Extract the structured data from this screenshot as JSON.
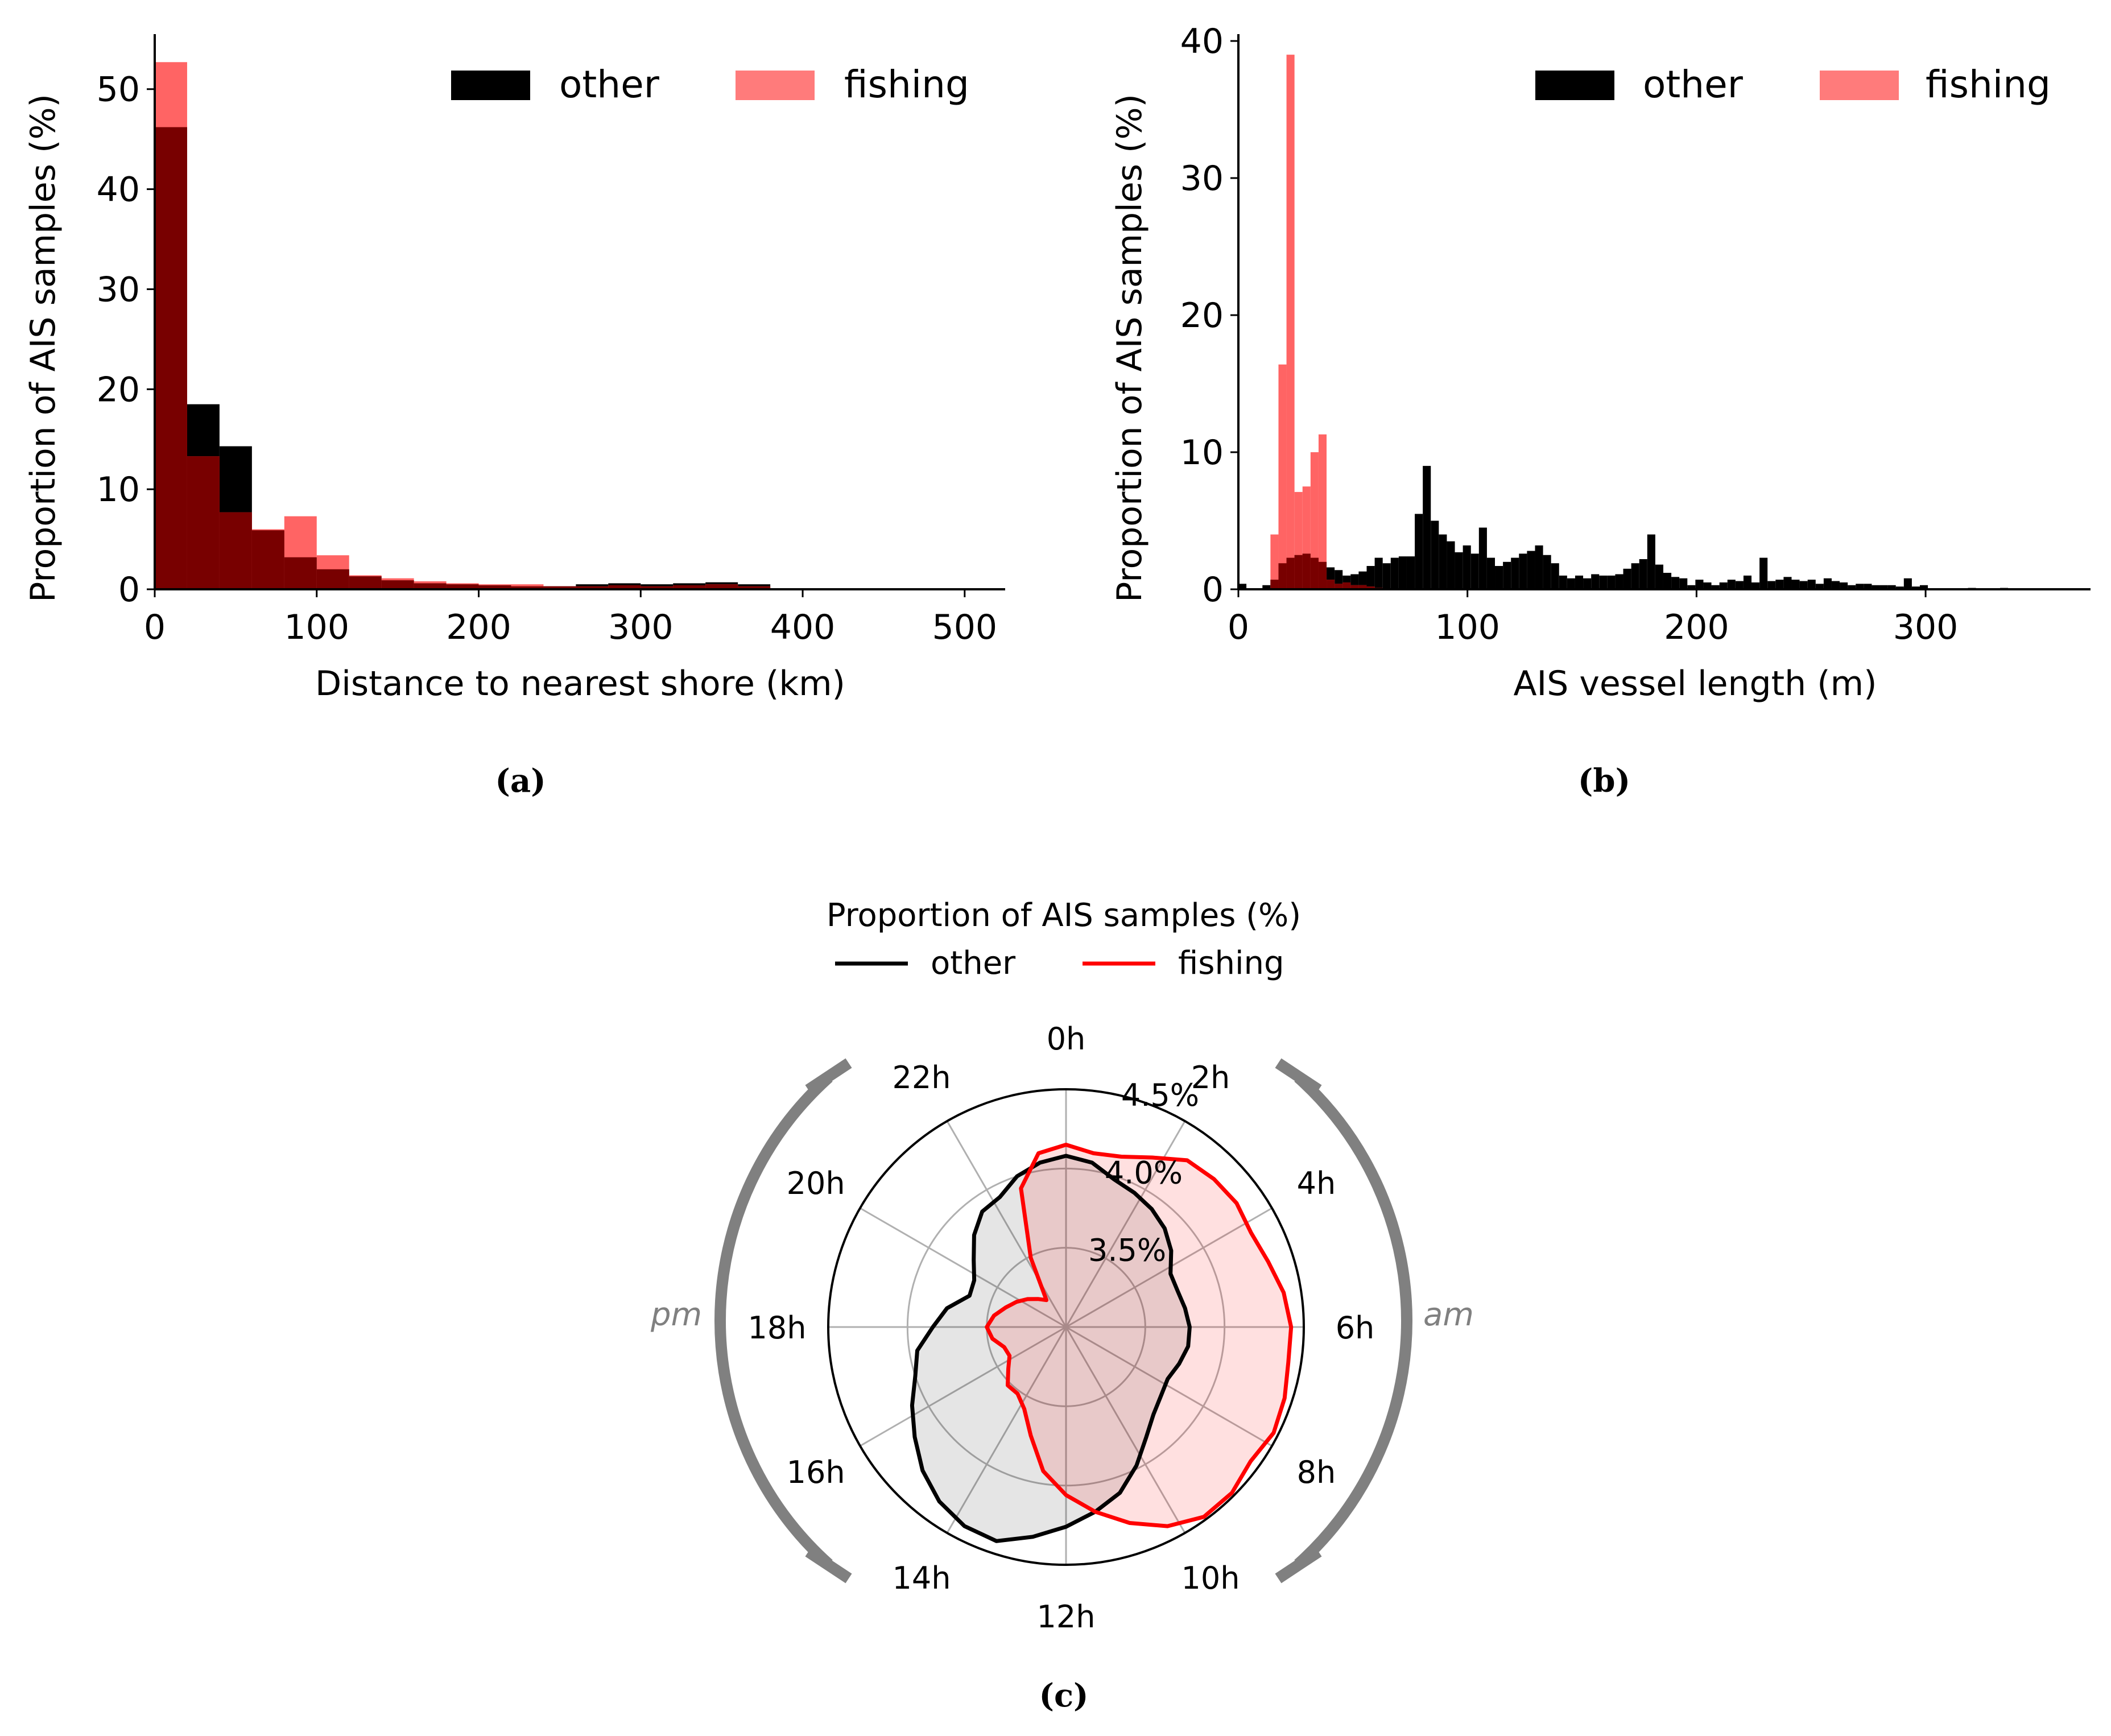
{
  "colors": {
    "other": "#000000",
    "fishing": "#ff0000",
    "fishing_bar": "#ff6464",
    "overlap": "#780000",
    "grid": "#b0b0b0",
    "bracket": "#808080",
    "other_fill": "#e5e5e5",
    "fishing_fill": "#ffdede"
  },
  "chart_data": [
    {
      "type": "bar",
      "panel_label": "(a)",
      "xlabel": "Distance to nearest shore (km)",
      "ylabel": "Proportion of AIS samples (%)",
      "xlim": [
        0,
        525
      ],
      "ylim": [
        0,
        55.5
      ],
      "xticks": [
        "0",
        "100",
        "200",
        "300",
        "400",
        "500"
      ],
      "xtick_values": [
        0,
        100,
        200,
        300,
        400,
        500
      ],
      "yticks": [
        "0",
        "10",
        "20",
        "30",
        "40",
        "50"
      ],
      "ytick_values": [
        0,
        10,
        20,
        30,
        40,
        50
      ],
      "legend": [
        "other",
        "fishing"
      ],
      "legend_position": "top-right",
      "bin_edges": [
        0,
        20,
        40,
        60,
        80,
        100,
        120,
        140,
        160,
        180,
        200,
        220,
        240,
        260,
        280,
        300,
        320,
        340,
        360,
        380
      ],
      "series": [
        {
          "name": "other",
          "values": [
            46.2,
            18.5,
            14.3,
            5.9,
            3.2,
            2.0,
            1.3,
            0.9,
            0.6,
            0.5,
            0.4,
            0.3,
            0.3,
            0.5,
            0.6,
            0.5,
            0.6,
            0.7,
            0.5
          ]
        },
        {
          "name": "fishing",
          "values": [
            52.7,
            13.3,
            7.7,
            6.0,
            7.3,
            3.4,
            1.4,
            1.1,
            0.8,
            0.6,
            0.5,
            0.5,
            0.3,
            0.3,
            0.4,
            0.3,
            0.4,
            0.5,
            0.3
          ]
        }
      ]
    },
    {
      "type": "bar",
      "panel_label": "(b)",
      "xlabel": "AIS vessel length (m)",
      "ylabel": "Proportion of AIS samples (%)",
      "xlim": [
        0,
        372
      ],
      "ylim": [
        0,
        40.5
      ],
      "xticks": [
        "0",
        "100",
        "200",
        "300"
      ],
      "xtick_values": [
        0,
        100,
        200,
        300
      ],
      "yticks": [
        "0",
        "10",
        "20",
        "30",
        "40"
      ],
      "ytick_values": [
        0,
        10,
        20,
        30,
        40
      ],
      "legend": [
        "other",
        "fishing"
      ],
      "legend_position": "top-right",
      "bin_start": 0,
      "bin_width": 3.5,
      "series": [
        {
          "name": "other",
          "values": [
            0.4,
            0,
            0,
            0.3,
            0.7,
            1.9,
            2.3,
            2.5,
            2.6,
            2.3,
            2.0,
            1.6,
            1.4,
            1.0,
            1.1,
            1.3,
            1.7,
            2.3,
            1.9,
            2.3,
            2.4,
            2.4,
            5.5,
            9.0,
            5.0,
            4.0,
            3.5,
            2.7,
            3.2,
            2.6,
            4.5,
            2.3,
            1.7,
            2.0,
            2.3,
            2.6,
            2.8,
            3.2,
            2.5,
            1.9,
            1.0,
            0.8,
            1.0,
            0.8,
            1.1,
            1.0,
            1.0,
            1.1,
            1.5,
            1.9,
            2.2,
            4.0,
            1.8,
            1.2,
            0.9,
            0.8,
            0.3,
            0.7,
            0.5,
            0.3,
            0.5,
            0.7,
            0.6,
            1.0,
            0.5,
            2.3,
            0.6,
            0.7,
            0.9,
            0.7,
            0.6,
            0.7,
            0.4,
            0.8,
            0.6,
            0.5,
            0.3,
            0.4,
            0.4,
            0.3,
            0.3,
            0.3,
            0.2,
            0.8,
            0.2,
            0.3,
            0,
            0,
            0,
            0,
            0,
            0.1,
            0,
            0,
            0,
            0.1
          ]
        },
        {
          "name": "fishing",
          "values": [
            0,
            0,
            0,
            0,
            4.0,
            16.4,
            39.0,
            7.1,
            7.5,
            10.0,
            11.3,
            0.7,
            0.4,
            0.5,
            0.3,
            0.3,
            0.2,
            0.1
          ]
        }
      ]
    },
    {
      "type": "radar",
      "panel_label": "(c)",
      "title": "Proportion of AIS samples (%)",
      "legend": [
        "other",
        "fishing"
      ],
      "legend_position": "top-center",
      "angle_labels": [
        "0h",
        "2h",
        "4h",
        "6h",
        "8h",
        "10h",
        "12h",
        "14h",
        "16h",
        "18h",
        "20h",
        "22h"
      ],
      "radial_labels": [
        "3.5%",
        "4.0%",
        "4.5%"
      ],
      "radial_values": [
        3.5,
        4.0,
        4.5
      ],
      "rlim": [
        3.0,
        4.5
      ],
      "side_labels": {
        "am": "am",
        "pm": "pm"
      },
      "series": [
        {
          "name": "other",
          "values": [
            4.08,
            4.05,
            3.98,
            3.95,
            3.92,
            3.88,
            3.82,
            3.74,
            3.74,
            3.76,
            3.78,
            3.78,
            3.75,
            3.72,
            3.74,
            3.78,
            3.86,
            3.98,
            4.1,
            4.18,
            4.26,
            4.34,
            4.42,
            4.41,
            4.36,
            4.28,
            4.18,
            4.09,
            4.0,
            3.95,
            3.84,
            3.76,
            3.64,
            3.65,
            3.72,
            3.82,
            3.9,
            3.92,
            4.0,
            4.05
          ]
        },
        {
          "name": "fishing",
          "values": [
            4.15,
            4.11,
            4.13,
            4.2,
            4.3,
            4.32,
            4.33,
            4.31,
            4.34,
            4.39,
            4.42,
            4.42,
            4.45,
            4.47,
            4.44,
            4.48,
            4.48,
            4.41,
            4.3,
            4.18,
            4.06,
            3.92,
            3.72,
            3.58,
            3.52,
            3.52,
            3.45,
            3.4,
            3.41,
            3.47,
            3.5,
            3.46,
            3.4,
            3.35,
            3.3,
            3.25,
            3.21,
            3.49,
            3.92,
            4.11
          ]
        }
      ]
    }
  ]
}
